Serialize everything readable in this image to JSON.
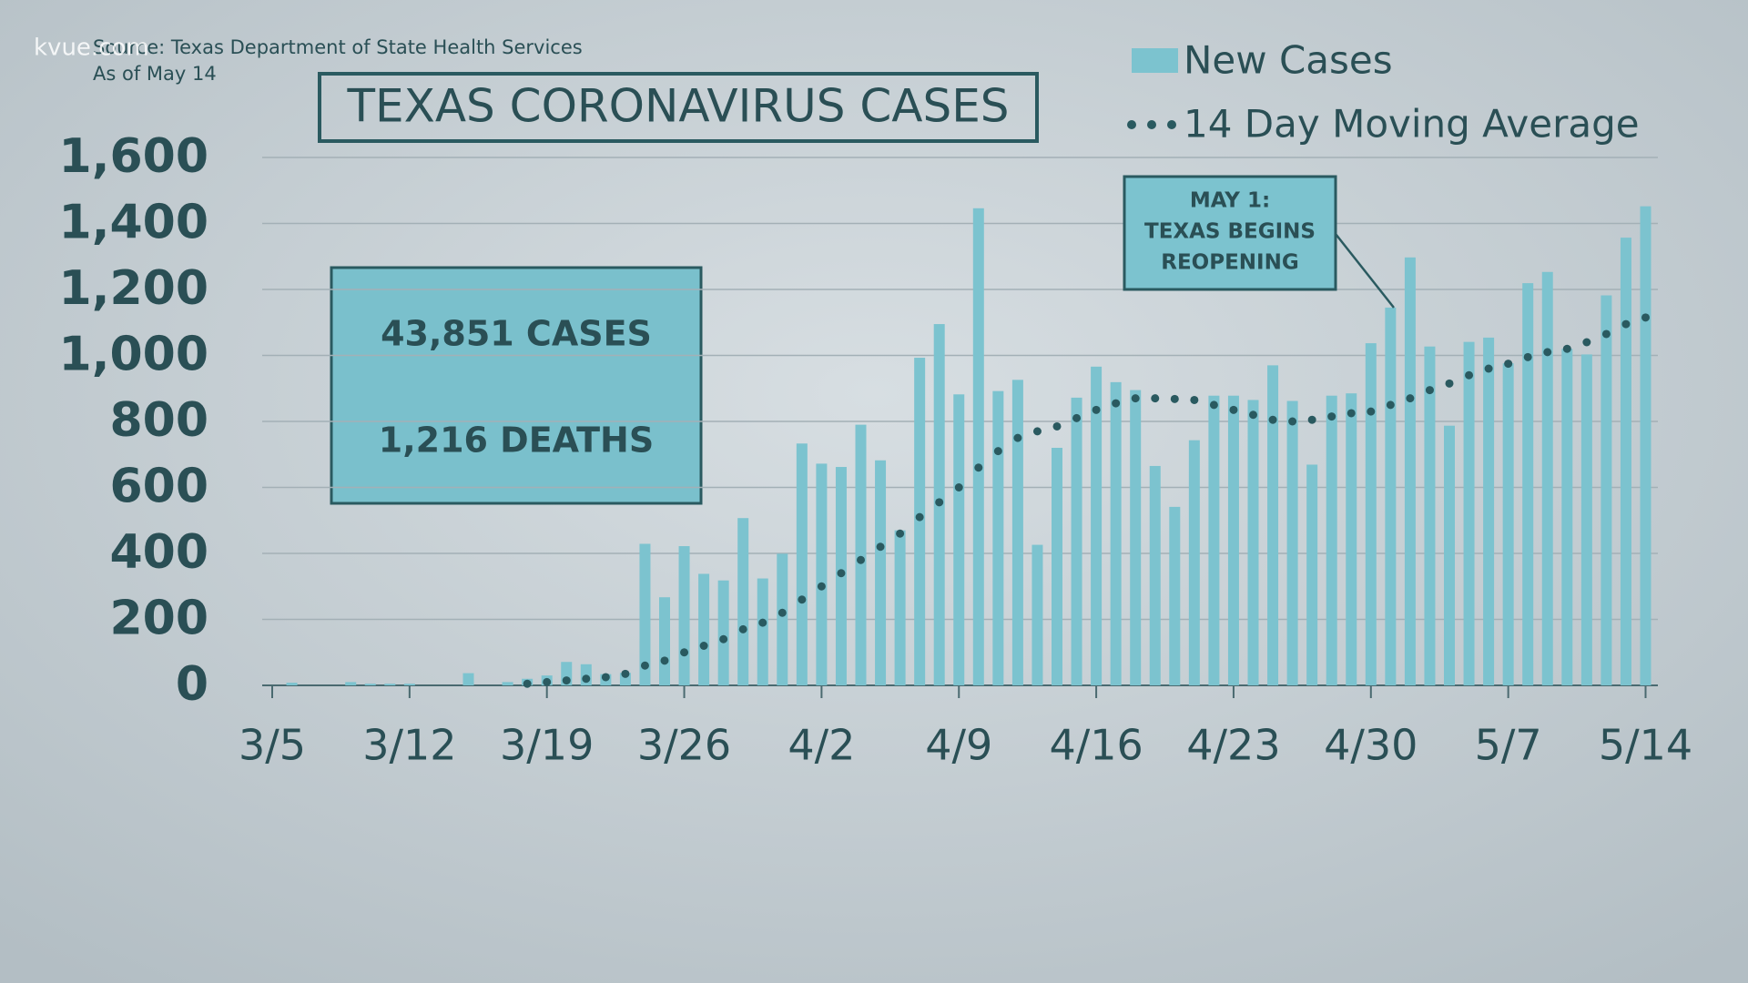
{
  "chart_data": {
    "type": "bar",
    "title": "TEXAS CORONAVIRUS CASES",
    "watermark": "kvue.com",
    "source": "Source: Texas Department of State Health Services",
    "subtitle": "As of May 14",
    "info_box": [
      "43,851 CASES",
      "1,216 DEATHS"
    ],
    "annotation": [
      "MAY 1:",
      "TEXAS BEGINS",
      "REOPENING"
    ],
    "categories": [
      "3/5",
      null,
      null,
      null,
      null,
      null,
      null,
      "3/12",
      null,
      null,
      null,
      null,
      null,
      null,
      "3/19",
      null,
      null,
      null,
      null,
      null,
      null,
      "3/26",
      null,
      null,
      null,
      null,
      null,
      null,
      "4/2",
      null,
      null,
      null,
      null,
      null,
      null,
      "4/9",
      null,
      null,
      null,
      null,
      null,
      null,
      "4/16",
      null,
      null,
      null,
      null,
      null,
      null,
      "4/23",
      null,
      null,
      null,
      null,
      null,
      null,
      "4/30",
      null,
      null,
      null,
      null,
      null,
      null,
      "5/7",
      null,
      null,
      null,
      null,
      null,
      null,
      "5/14"
    ],
    "series": [
      {
        "name": "New Cases",
        "type": "bar",
        "color": "#7cc3cf",
        "values": [
          0,
          8,
          0,
          0,
          10,
          5,
          5,
          5,
          0,
          0,
          37,
          0,
          10,
          20,
          30,
          71,
          64,
          34,
          38,
          429,
          267,
          422,
          338,
          318,
          507,
          324,
          399,
          733,
          672,
          662,
          790,
          682,
          470,
          993,
          1095,
          882,
          1446,
          892,
          926,
          426,
          720,
          872,
          966,
          919,
          895,
          665,
          541,
          743,
          878,
          878,
          865,
          970,
          862,
          669,
          878,
          885,
          1037,
          1145,
          1297,
          1027,
          787,
          1041,
          1054,
          976,
          1219,
          1253,
          1020,
          1003,
          1182,
          1357,
          1452
        ]
      },
      {
        "name": "14 Day Moving Average",
        "type": "line",
        "style": "dotted",
        "color": "#2a5a60",
        "values": [
          null,
          null,
          null,
          null,
          null,
          null,
          null,
          null,
          null,
          null,
          null,
          null,
          null,
          5,
          10,
          15,
          20,
          25,
          35,
          60,
          75,
          100,
          120,
          140,
          170,
          190,
          220,
          260,
          300,
          340,
          380,
          420,
          460,
          510,
          555,
          600,
          660,
          710,
          750,
          770,
          785,
          810,
          835,
          855,
          870,
          870,
          868,
          865,
          850,
          835,
          820,
          805,
          800,
          805,
          815,
          825,
          830,
          850,
          870,
          895,
          915,
          940,
          960,
          975,
          995,
          1010,
          1020,
          1040,
          1065,
          1095,
          1115
        ]
      }
    ],
    "ylim": [
      0,
      1600
    ],
    "yticks": [
      0,
      200,
      400,
      600,
      800,
      {
        "value": 1000,
        "label": "1,000"
      },
      {
        "value": 1200,
        "label": "1,200"
      },
      {
        "value": 1400,
        "label": "1,400"
      },
      {
        "value": 1600,
        "label": "1,600"
      }
    ],
    "grid": true
  }
}
